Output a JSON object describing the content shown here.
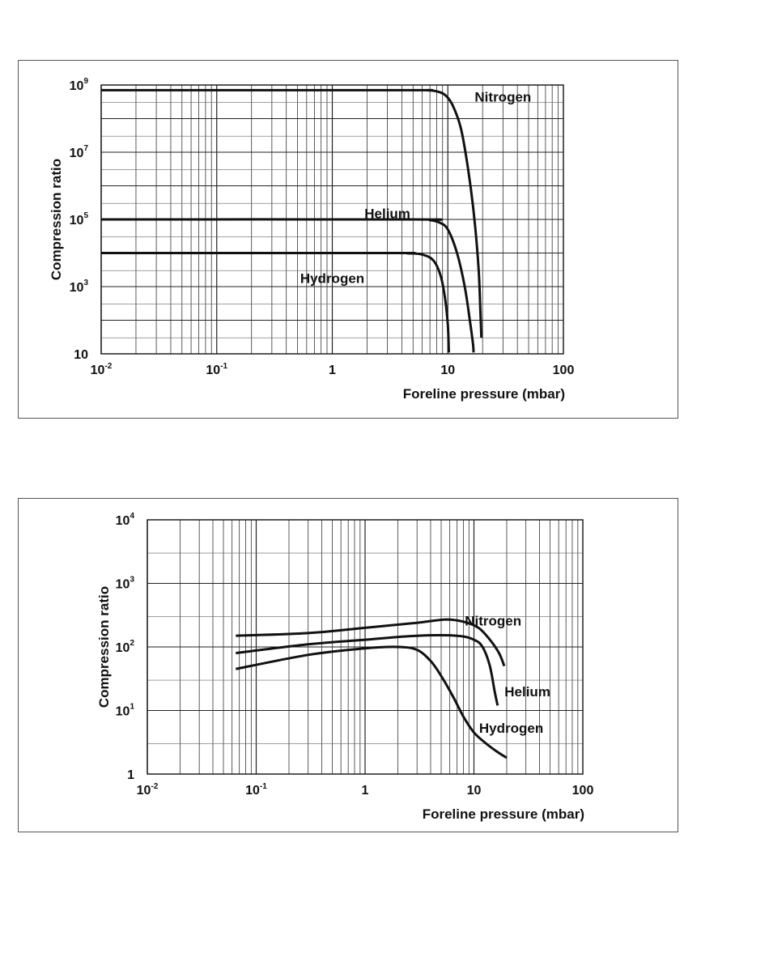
{
  "chart_data": [
    {
      "type": "line",
      "xlabel": "Foreline pressure (mbar)",
      "ylabel": "Compression ratio",
      "x_scale": "log",
      "y_scale": "log",
      "xlim": [
        0.01,
        100
      ],
      "ylim": [
        10,
        1000000000
      ],
      "x_ticks": [
        {
          "base": "10",
          "exp": "-2",
          "value": 0.01
        },
        {
          "base": "10",
          "exp": "-1",
          "value": 0.1
        },
        {
          "base": "1",
          "exp": "",
          "value": 1
        },
        {
          "base": "10",
          "exp": "",
          "value": 10
        },
        {
          "base": "100",
          "exp": "",
          "value": 100
        }
      ],
      "y_ticks": [
        {
          "base": "10",
          "exp": "",
          "value": 10
        },
        {
          "base": "10",
          "exp": "3",
          "value": 1000
        },
        {
          "base": "10",
          "exp": "5",
          "value": 100000
        },
        {
          "base": "10",
          "exp": "7",
          "value": 10000000
        },
        {
          "base": "10",
          "exp": "9",
          "value": 1000000000
        }
      ],
      "grid": true,
      "series": [
        {
          "name": "Nitrogen",
          "label_at": [
            30,
            450000000
          ],
          "points": [
            [
              0.01,
              700000000
            ],
            [
              4,
              700000000
            ],
            [
              6.5,
              700000000
            ],
            [
              8,
              650000000
            ],
            [
              9.5,
              500000000
            ],
            [
              11,
              250000000
            ],
            [
              13,
              50000000
            ],
            [
              15,
              3000000
            ],
            [
              17,
              100000
            ],
            [
              18.5,
              3000
            ],
            [
              19.2,
              130
            ],
            [
              19.5,
              30
            ]
          ]
        },
        {
          "name": "Helium",
          "label_at": [
            3,
            150000
          ],
          "points": [
            [
              0.01,
              100000
            ],
            [
              5,
              100000
            ],
            [
              7,
              95000
            ],
            [
              8.5,
              80000
            ],
            [
              10,
              50000
            ],
            [
              12,
              10000
            ],
            [
              14,
              1000
            ],
            [
              15.5,
              100
            ],
            [
              16.5,
              20
            ],
            [
              16.7,
              11
            ]
          ]
        },
        {
          "name": "Hydrogen",
          "label_at": [
            1.0,
            1800
          ],
          "points": [
            [
              0.01,
              10000
            ],
            [
              3,
              10000
            ],
            [
              4.5,
              9800
            ],
            [
              6,
              9000
            ],
            [
              7.5,
              6000
            ],
            [
              8.7,
              2000
            ],
            [
              9.5,
              400
            ],
            [
              10,
              70
            ],
            [
              10.2,
              11
            ]
          ]
        }
      ]
    },
    {
      "type": "line",
      "xlabel": "Foreline pressure (mbar)",
      "ylabel": "Compression ratio",
      "x_scale": "log",
      "y_scale": "log",
      "xlim": [
        0.01,
        100
      ],
      "ylim": [
        1,
        10000
      ],
      "x_ticks": [
        {
          "base": "10",
          "exp": "-2",
          "value": 0.01
        },
        {
          "base": "10",
          "exp": "-1",
          "value": 0.1
        },
        {
          "base": "1",
          "exp": "",
          "value": 1
        },
        {
          "base": "10",
          "exp": "",
          "value": 10
        },
        {
          "base": "100",
          "exp": "",
          "value": 100
        }
      ],
      "y_ticks": [
        {
          "base": "1",
          "exp": "",
          "value": 1
        },
        {
          "base": "10",
          "exp": "1",
          "value": 10
        },
        {
          "base": "10",
          "exp": "2",
          "value": 100
        },
        {
          "base": "10",
          "exp": "3",
          "value": 1000
        },
        {
          "base": "10",
          "exp": "4",
          "value": 10000
        }
      ],
      "grid": true,
      "series": [
        {
          "name": "Nitrogen",
          "label_at": [
            15,
            260
          ],
          "points": [
            [
              0.065,
              150
            ],
            [
              0.3,
              165
            ],
            [
              1,
              200
            ],
            [
              3,
              240
            ],
            [
              5.5,
              270
            ],
            [
              8,
              250
            ],
            [
              11,
              200
            ],
            [
              14,
              130
            ],
            [
              17,
              80
            ],
            [
              19,
              50
            ]
          ]
        },
        {
          "name": "Helium",
          "label_at": [
            31,
            20
          ],
          "points": [
            [
              0.065,
              80
            ],
            [
              0.3,
              110
            ],
            [
              1,
              130
            ],
            [
              3,
              150
            ],
            [
              7,
              150
            ],
            [
              10,
              130
            ],
            [
              12,
              100
            ],
            [
              14,
              50
            ],
            [
              15.5,
              20
            ],
            [
              16.5,
              12
            ]
          ]
        },
        {
          "name": "Hydrogen",
          "label_at": [
            22,
            5.3
          ],
          "points": [
            [
              0.065,
              45
            ],
            [
              0.3,
              75
            ],
            [
              1,
              95
            ],
            [
              2,
              100
            ],
            [
              3,
              90
            ],
            [
              4,
              60
            ],
            [
              5,
              35
            ],
            [
              6.5,
              16
            ],
            [
              8,
              8
            ],
            [
              10,
              4.5
            ],
            [
              13,
              3
            ],
            [
              16,
              2.3
            ],
            [
              20,
              1.8
            ]
          ]
        }
      ]
    }
  ]
}
